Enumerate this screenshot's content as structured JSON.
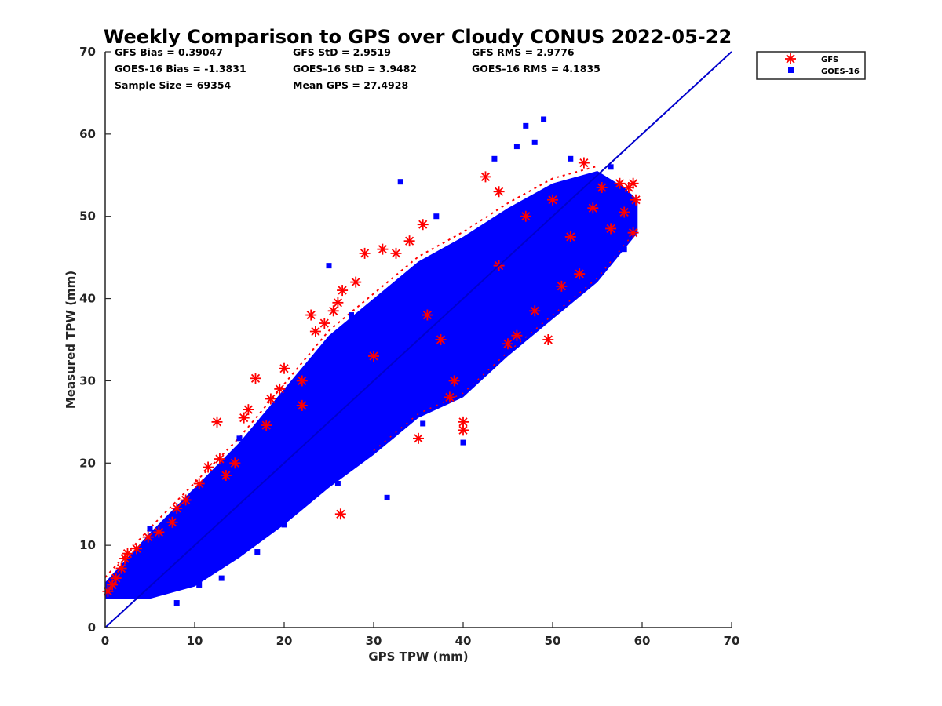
{
  "chart_data": {
    "type": "scatter",
    "title": "Weekly Comparison to GPS over Cloudy CONUS 2022-05-22",
    "xlabel": "GPS TPW (mm)",
    "ylabel": "Measured TPW (mm)",
    "xlim": [
      0,
      70
    ],
    "ylim": [
      0,
      70
    ],
    "xticks": [
      "0",
      "10",
      "20",
      "30",
      "40",
      "50",
      "60",
      "70"
    ],
    "yticks": [
      "0",
      "10",
      "20",
      "30",
      "40",
      "50",
      "60",
      "70"
    ],
    "grid": false,
    "legend_position": "top-right outside",
    "reference_line": {
      "from": [
        0,
        0
      ],
      "to": [
        70,
        70
      ],
      "color": "#0000cc"
    },
    "stats": [
      [
        "GFS Bias = 0.39047",
        "GFS StD = 2.9519",
        "GFS RMS = 2.9776"
      ],
      [
        "GOES-16 Bias = -1.3831",
        "GOES-16 StD = 3.9482",
        "GOES-16 RMS = 4.1835"
      ],
      [
        "Sample Size = 69354",
        "Mean GPS = 27.4928",
        ""
      ]
    ],
    "series": [
      {
        "name": "GFS",
        "marker": "asterisk",
        "color": "#ff0000",
        "points": [
          [
            0.3,
            4.4
          ],
          [
            0.8,
            5.2
          ],
          [
            1.2,
            6.0
          ],
          [
            1.8,
            7.2
          ],
          [
            2.2,
            8.4
          ],
          [
            2.5,
            9.0
          ],
          [
            3.5,
            9.6
          ],
          [
            4.8,
            11.0
          ],
          [
            6.0,
            11.6
          ],
          [
            7.5,
            12.8
          ],
          [
            8.0,
            14.5
          ],
          [
            9.0,
            15.5
          ],
          [
            10.5,
            17.5
          ],
          [
            11.5,
            19.5
          ],
          [
            12.5,
            25.0
          ],
          [
            12.8,
            20.5
          ],
          [
            14.5,
            20.0
          ],
          [
            15.5,
            25.5
          ],
          [
            16.0,
            26.5
          ],
          [
            16.8,
            30.3
          ],
          [
            18.0,
            24.6
          ],
          [
            18.5,
            27.8
          ],
          [
            19.5,
            29.0
          ],
          [
            20.0,
            31.5
          ],
          [
            22.0,
            30.0
          ],
          [
            23.0,
            38.0
          ],
          [
            23.5,
            36.0
          ],
          [
            24.5,
            37.0
          ],
          [
            25.5,
            38.5
          ],
          [
            26.0,
            39.5
          ],
          [
            26.5,
            41.0
          ],
          [
            28.0,
            42.0
          ],
          [
            29.0,
            45.5
          ],
          [
            31.0,
            46.0
          ],
          [
            32.5,
            45.5
          ],
          [
            34.0,
            47.0
          ],
          [
            35.5,
            49.0
          ],
          [
            36.0,
            38.0
          ],
          [
            37.5,
            35.0
          ],
          [
            38.5,
            28.0
          ],
          [
            39.0,
            30.0
          ],
          [
            40.0,
            24.0
          ],
          [
            40.0,
            25.0
          ],
          [
            42.5,
            54.8
          ],
          [
            44.0,
            53.0
          ],
          [
            45.0,
            34.5
          ],
          [
            46.0,
            35.5
          ],
          [
            47.0,
            50.0
          ],
          [
            48.0,
            38.5
          ],
          [
            49.5,
            35.0
          ],
          [
            51.0,
            41.5
          ],
          [
            52.0,
            47.5
          ],
          [
            53.0,
            43.0
          ],
          [
            53.5,
            56.5
          ],
          [
            54.5,
            51.0
          ],
          [
            55.5,
            53.5
          ],
          [
            56.5,
            48.5
          ],
          [
            57.5,
            54.0
          ],
          [
            58.0,
            50.5
          ],
          [
            58.5,
            53.5
          ],
          [
            59.0,
            48.0
          ],
          [
            59.0,
            54.0
          ],
          [
            59.3,
            52.0
          ],
          [
            26.3,
            13.8
          ],
          [
            22.0,
            27.0
          ],
          [
            13.5,
            18.5
          ],
          [
            35.0,
            23.0
          ],
          [
            30.0,
            33.0
          ],
          [
            44.0,
            44.0
          ],
          [
            50.0,
            52.0
          ]
        ]
      },
      {
        "name": "GOES-16",
        "marker": "square",
        "color": "#0000ff",
        "points": [
          [
            49.0,
            61.8
          ],
          [
            54.5,
            54.5
          ],
          [
            56.5,
            56.0
          ],
          [
            43.5,
            57.0
          ],
          [
            46.0,
            58.5
          ],
          [
            48.0,
            59.0
          ],
          [
            47.0,
            61.0
          ],
          [
            33.0,
            54.2
          ],
          [
            40.0,
            22.5
          ],
          [
            35.5,
            24.8
          ],
          [
            31.5,
            15.8
          ],
          [
            26.0,
            17.5
          ],
          [
            17.0,
            9.2
          ],
          [
            10.5,
            5.2
          ],
          [
            8.0,
            3.0
          ],
          [
            58.0,
            46.0
          ],
          [
            59.0,
            49.5
          ],
          [
            52.0,
            57.0
          ],
          [
            25.0,
            44.0
          ],
          [
            37.0,
            50.0
          ],
          [
            45.0,
            34.0
          ],
          [
            50.0,
            41.0
          ],
          [
            13.0,
            6.0
          ],
          [
            20.0,
            12.5
          ],
          [
            30.0,
            22.5
          ],
          [
            42.0,
            32.5
          ],
          [
            55.0,
            43.0
          ],
          [
            5.0,
            12.0
          ],
          [
            15.0,
            23.0
          ],
          [
            27.5,
            38.0
          ]
        ]
      }
    ]
  }
}
